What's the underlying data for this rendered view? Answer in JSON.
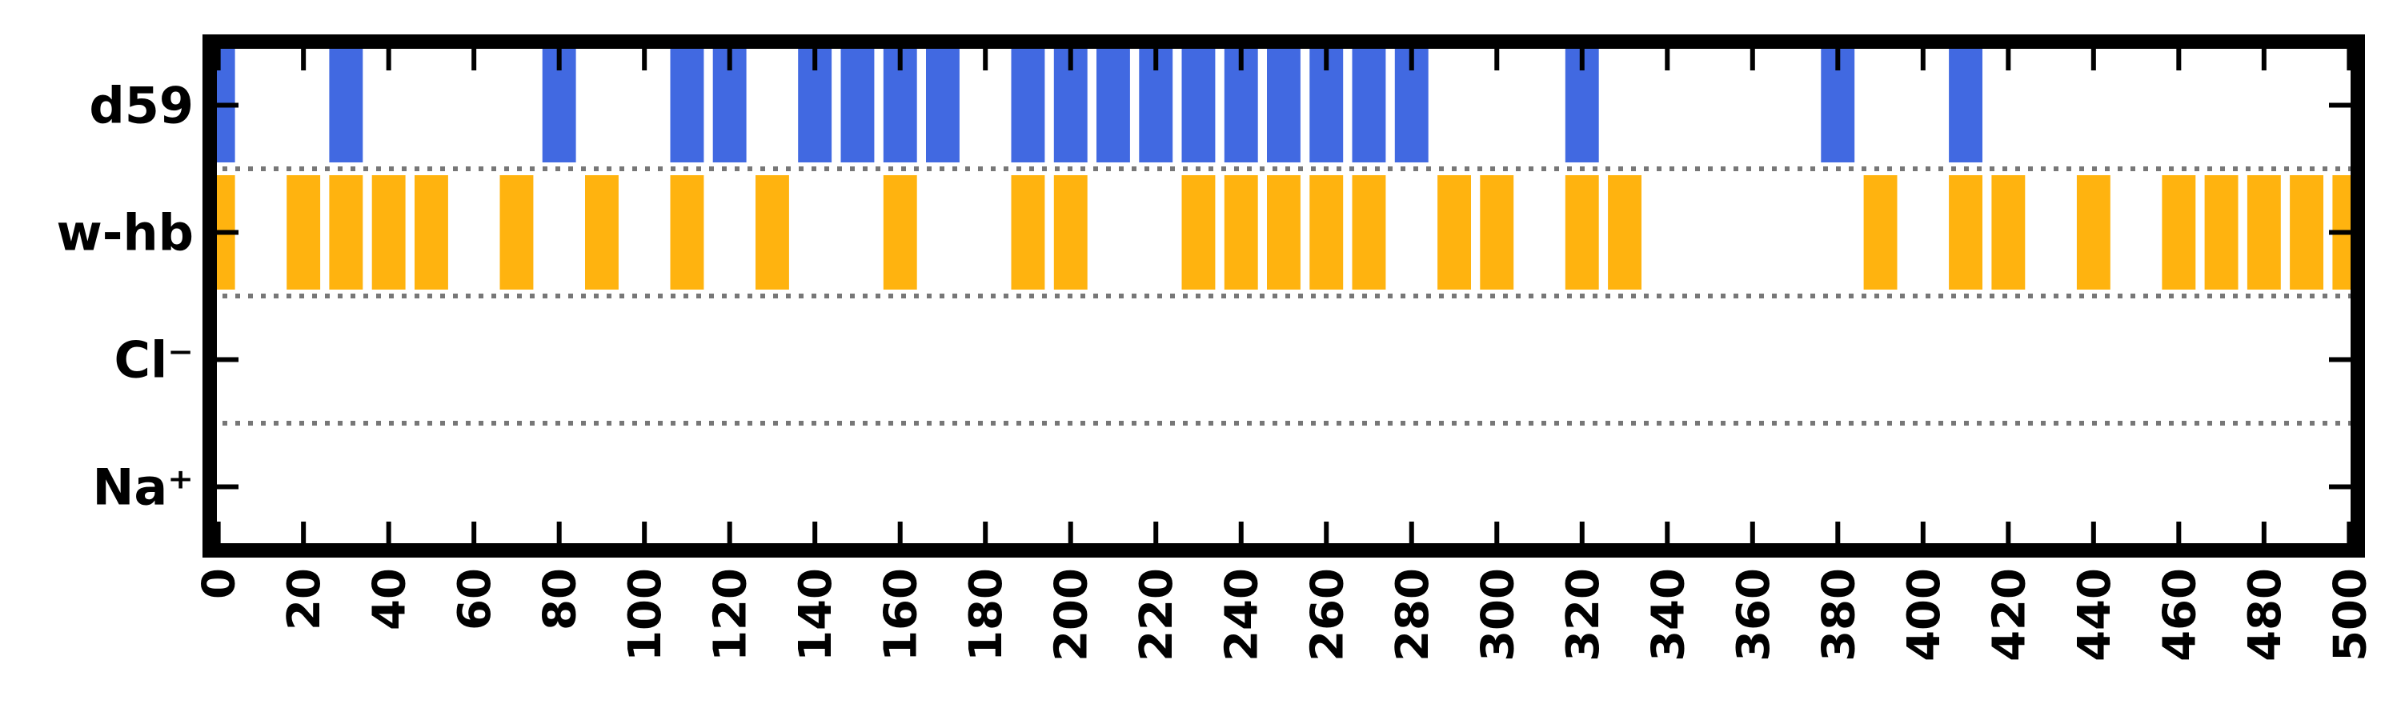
{
  "chart_data": {
    "type": "bar",
    "xlim": [
      -2,
      502
    ],
    "xticks": [
      0,
      20,
      40,
      60,
      80,
      100,
      120,
      140,
      160,
      180,
      200,
      220,
      240,
      260,
      280,
      300,
      320,
      340,
      360,
      380,
      400,
      420,
      440,
      460,
      480,
      500
    ],
    "xtick_labels": [
      "0",
      "20",
      "40",
      "60",
      "80",
      "100",
      "120",
      "140",
      "160",
      "180",
      "200",
      "220",
      "240",
      "260",
      "280",
      "300",
      "320",
      "340",
      "360",
      "380",
      "400",
      "420",
      "440",
      "460",
      "480",
      "500"
    ],
    "bin_width": 9,
    "grid": false,
    "rows": [
      {
        "label": "d59",
        "color": "#4169E1",
        "x": [
          0,
          30,
          80,
          110,
          120,
          140,
          150,
          160,
          170,
          190,
          200,
          210,
          220,
          230,
          240,
          250,
          260,
          270,
          280,
          320,
          380,
          410
        ]
      },
      {
        "label": "w-hb",
        "color": "#FFB30F",
        "x": [
          0,
          20,
          30,
          40,
          50,
          70,
          90,
          110,
          130,
          160,
          190,
          200,
          230,
          240,
          250,
          260,
          270,
          290,
          300,
          320,
          330,
          390,
          410,
          420,
          440,
          460,
          470,
          480,
          490,
          500
        ]
      },
      {
        "label": "Cl⁻",
        "color": "#4169E1",
        "x": []
      },
      {
        "label": "Na⁺",
        "color": "#FFB30F",
        "x": []
      }
    ]
  }
}
